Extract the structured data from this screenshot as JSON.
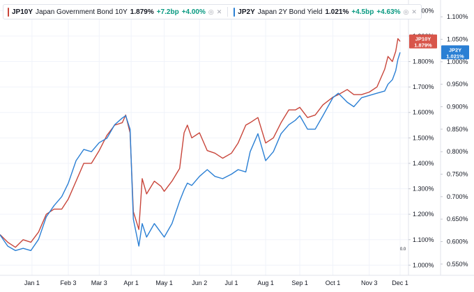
{
  "legend": {
    "items": [
      {
        "symbol": "JP10Y",
        "name": "Japan Government Bond 10Y",
        "value": "1.879%",
        "change": "+7.2bp",
        "pct": "+4.00%",
        "color": "#c8453a"
      },
      {
        "symbol": "JP2Y",
        "name": "Japan 2Y Bond Yield",
        "value": "1.021%",
        "change": "+4.5bp",
        "pct": "+4.63%",
        "color": "#2a7fd4"
      }
    ],
    "visibility_icon": "eye-slash-icon",
    "close_icon": "close-icon"
  },
  "price_tags": [
    {
      "symbol": "JP10Y",
      "value": "1.879%",
      "color": "#d8554a"
    },
    {
      "symbol": "JP2Y",
      "value": "1.021%",
      "color": "#2a7fd4"
    }
  ],
  "scale_label": "0.0",
  "chart_data": {
    "type": "line",
    "x_ticks": [
      "Jan 1",
      "Feb 3",
      "Mar 3",
      "Apr 1",
      "May 1",
      "Jun 2",
      "Jul 1",
      "Aug 1",
      "Sep 1",
      "Oct 1",
      "Nov 3",
      "Dec 1"
    ],
    "x_tick_dates": [
      "2025-01-01",
      "2025-02-03",
      "2025-03-03",
      "2025-04-01",
      "2025-05-01",
      "2025-06-02",
      "2025-07-01",
      "2025-08-01",
      "2025-09-01",
      "2025-10-01",
      "2025-11-03",
      "2025-12-01"
    ],
    "xlim": [
      "2024-12-03",
      "2025-12-01"
    ],
    "left_axis": {
      "series": "JP10Y",
      "ticks": [
        "2.000%",
        "1.900%",
        "1.800%",
        "1.700%",
        "1.600%",
        "1.500%",
        "1.400%",
        "1.300%",
        "1.200%",
        "1.100%",
        "1.000%"
      ],
      "ylim": [
        0.96,
        2.02
      ]
    },
    "right_axis": {
      "series": "JP2Y",
      "ticks": [
        "1.100%",
        "1.050%",
        "1.000%",
        "0.950%",
        "0.900%",
        "0.850%",
        "0.800%",
        "0.750%",
        "0.700%",
        "0.650%",
        "0.600%",
        "0.550%"
      ],
      "ylim": [
        0.525,
        1.125
      ]
    },
    "series": [
      {
        "name": "JP10Y",
        "axis": "left",
        "color": "#c8453a",
        "points": [
          [
            "2024-12-03",
            1.12
          ],
          [
            "2024-12-10",
            1.09
          ],
          [
            "2024-12-17",
            1.07
          ],
          [
            "2024-12-24",
            1.1
          ],
          [
            "2024-12-31",
            1.09
          ],
          [
            "2025-01-07",
            1.13
          ],
          [
            "2025-01-14",
            1.2
          ],
          [
            "2025-01-21",
            1.22
          ],
          [
            "2025-01-28",
            1.22
          ],
          [
            "2025-02-03",
            1.26
          ],
          [
            "2025-02-10",
            1.33
          ],
          [
            "2025-02-17",
            1.4
          ],
          [
            "2025-02-24",
            1.4
          ],
          [
            "2025-03-03",
            1.45
          ],
          [
            "2025-03-10",
            1.51
          ],
          [
            "2025-03-17",
            1.55
          ],
          [
            "2025-03-24",
            1.56
          ],
          [
            "2025-03-27",
            1.59
          ],
          [
            "2025-03-31",
            1.52
          ],
          [
            "2025-04-03",
            1.21
          ],
          [
            "2025-04-08",
            1.14
          ],
          [
            "2025-04-11",
            1.34
          ],
          [
            "2025-04-15",
            1.28
          ],
          [
            "2025-04-22",
            1.33
          ],
          [
            "2025-04-28",
            1.31
          ],
          [
            "2025-05-01",
            1.29
          ],
          [
            "2025-05-08",
            1.33
          ],
          [
            "2025-05-15",
            1.38
          ],
          [
            "2025-05-19",
            1.52
          ],
          [
            "2025-05-22",
            1.55
          ],
          [
            "2025-05-26",
            1.5
          ],
          [
            "2025-06-02",
            1.52
          ],
          [
            "2025-06-09",
            1.45
          ],
          [
            "2025-06-16",
            1.44
          ],
          [
            "2025-06-23",
            1.42
          ],
          [
            "2025-07-01",
            1.44
          ],
          [
            "2025-07-07",
            1.48
          ],
          [
            "2025-07-14",
            1.55
          ],
          [
            "2025-07-18",
            1.56
          ],
          [
            "2025-07-25",
            1.58
          ],
          [
            "2025-08-01",
            1.48
          ],
          [
            "2025-08-08",
            1.5
          ],
          [
            "2025-08-15",
            1.56
          ],
          [
            "2025-08-22",
            1.61
          ],
          [
            "2025-08-28",
            1.61
          ],
          [
            "2025-09-01",
            1.62
          ],
          [
            "2025-09-08",
            1.58
          ],
          [
            "2025-09-15",
            1.59
          ],
          [
            "2025-09-22",
            1.63
          ],
          [
            "2025-10-01",
            1.66
          ],
          [
            "2025-10-06",
            1.67
          ],
          [
            "2025-10-14",
            1.69
          ],
          [
            "2025-10-20",
            1.67
          ],
          [
            "2025-10-27",
            1.67
          ],
          [
            "2025-11-03",
            1.68
          ],
          [
            "2025-11-10",
            1.7
          ],
          [
            "2025-11-17",
            1.77
          ],
          [
            "2025-11-20",
            1.82
          ],
          [
            "2025-11-24",
            1.8
          ],
          [
            "2025-11-27",
            1.84
          ],
          [
            "2025-11-29",
            1.89
          ],
          [
            "2025-12-01",
            1.879
          ]
        ]
      },
      {
        "name": "JP2Y",
        "axis": "right",
        "color": "#2a7fd4",
        "points": [
          [
            "2024-12-03",
            0.615
          ],
          [
            "2024-12-10",
            0.59
          ],
          [
            "2024-12-17",
            0.58
          ],
          [
            "2024-12-24",
            0.585
          ],
          [
            "2024-12-31",
            0.58
          ],
          [
            "2025-01-07",
            0.605
          ],
          [
            "2025-01-14",
            0.655
          ],
          [
            "2025-01-21",
            0.68
          ],
          [
            "2025-01-28",
            0.7
          ],
          [
            "2025-02-03",
            0.73
          ],
          [
            "2025-02-10",
            0.78
          ],
          [
            "2025-02-17",
            0.805
          ],
          [
            "2025-02-24",
            0.8
          ],
          [
            "2025-03-03",
            0.82
          ],
          [
            "2025-03-10",
            0.83
          ],
          [
            "2025-03-17",
            0.86
          ],
          [
            "2025-03-24",
            0.875
          ],
          [
            "2025-03-27",
            0.88
          ],
          [
            "2025-03-31",
            0.85
          ],
          [
            "2025-04-03",
            0.65
          ],
          [
            "2025-04-08",
            0.59
          ],
          [
            "2025-04-11",
            0.64
          ],
          [
            "2025-04-15",
            0.61
          ],
          [
            "2025-04-22",
            0.64
          ],
          [
            "2025-04-28",
            0.62
          ],
          [
            "2025-05-01",
            0.61
          ],
          [
            "2025-05-08",
            0.64
          ],
          [
            "2025-05-15",
            0.69
          ],
          [
            "2025-05-19",
            0.715
          ],
          [
            "2025-05-22",
            0.73
          ],
          [
            "2025-05-26",
            0.725
          ],
          [
            "2025-06-02",
            0.745
          ],
          [
            "2025-06-09",
            0.76
          ],
          [
            "2025-06-16",
            0.745
          ],
          [
            "2025-06-23",
            0.74
          ],
          [
            "2025-07-01",
            0.75
          ],
          [
            "2025-07-07",
            0.76
          ],
          [
            "2025-07-14",
            0.755
          ],
          [
            "2025-07-18",
            0.8
          ],
          [
            "2025-07-25",
            0.84
          ],
          [
            "2025-08-01",
            0.78
          ],
          [
            "2025-08-08",
            0.8
          ],
          [
            "2025-08-15",
            0.84
          ],
          [
            "2025-08-22",
            0.86
          ],
          [
            "2025-08-28",
            0.87
          ],
          [
            "2025-09-01",
            0.88
          ],
          [
            "2025-09-08",
            0.85
          ],
          [
            "2025-09-15",
            0.85
          ],
          [
            "2025-09-22",
            0.88
          ],
          [
            "2025-10-01",
            0.92
          ],
          [
            "2025-10-06",
            0.93
          ],
          [
            "2025-10-14",
            0.91
          ],
          [
            "2025-10-20",
            0.9
          ],
          [
            "2025-10-27",
            0.92
          ],
          [
            "2025-11-03",
            0.925
          ],
          [
            "2025-11-10",
            0.93
          ],
          [
            "2025-11-17",
            0.935
          ],
          [
            "2025-11-20",
            0.95
          ],
          [
            "2025-11-24",
            0.96
          ],
          [
            "2025-11-27",
            0.98
          ],
          [
            "2025-11-29",
            1.005
          ],
          [
            "2025-12-01",
            1.021
          ]
        ]
      }
    ]
  }
}
